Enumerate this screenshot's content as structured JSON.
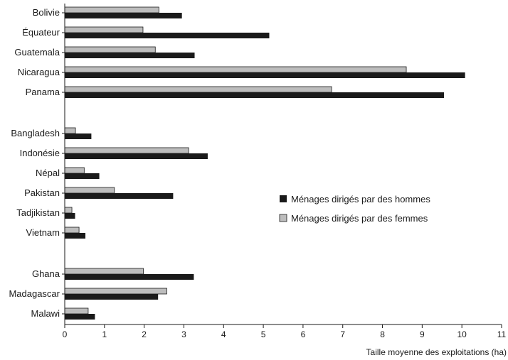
{
  "chart_data": {
    "type": "bar",
    "orientation": "horizontal",
    "xlabel": "Taille moyenne des exploitations (ha)",
    "xlim": [
      0,
      11
    ],
    "xticks": [
      "0",
      "1",
      "2",
      "3",
      "4",
      "5",
      "6",
      "7",
      "8",
      "9",
      "10",
      "11"
    ],
    "legend_position": "right",
    "grid": false,
    "groups": [
      {
        "categories": [
          "Bolivie",
          "Équateur",
          "Guatemala",
          "Nicaragua",
          "Panama"
        ]
      },
      {
        "categories": [
          "Bangladesh",
          "Indonésie",
          "Népal",
          "Pakistan",
          "Tadjikistan",
          "Vietnam"
        ]
      },
      {
        "categories": [
          "Ghana",
          "Madagascar",
          "Malawi"
        ]
      }
    ],
    "categories": [
      "Bolivie",
      "Équateur",
      "Guatemala",
      "Nicaragua",
      "Panama",
      "Bangladesh",
      "Indonésie",
      "Népal",
      "Pakistan",
      "Tadjikistan",
      "Vietnam",
      "Ghana",
      "Madagascar",
      "Malawi"
    ],
    "series": [
      {
        "name": "Ménages dirigés par des hommes",
        "color": "#1a1a1a",
        "values": [
          2.95,
          5.15,
          3.27,
          10.08,
          9.55,
          0.67,
          3.6,
          0.87,
          2.73,
          0.26,
          0.52,
          3.25,
          2.35,
          0.76
        ]
      },
      {
        "name": "Ménages dirigés par des femmes",
        "color": "#bdbdbd",
        "values": [
          2.37,
          1.97,
          2.28,
          8.6,
          6.72,
          0.27,
          3.12,
          0.49,
          1.25,
          0.18,
          0.36,
          1.98,
          2.57,
          0.59
        ]
      }
    ]
  }
}
